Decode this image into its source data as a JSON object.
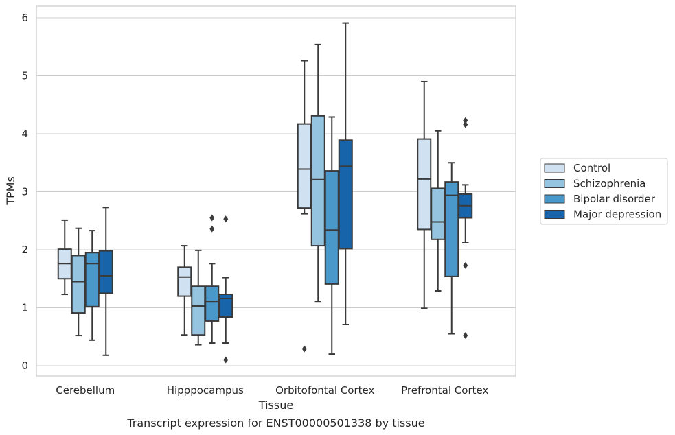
{
  "chart_data": {
    "type": "box",
    "xlabel": "Tissue",
    "ylabel": "TPMs",
    "caption": "Transcript expression for ENST00000501338 by tissue",
    "ylim": [
      -0.18,
      6.2
    ],
    "yticks": [
      0,
      1,
      2,
      3,
      4,
      5,
      6
    ],
    "grid": "horizontal",
    "legend_position": "right",
    "categories": [
      "Cerebellum",
      "Hipppocampus",
      "Orbitofontal Cortex",
      "Prefrontal Cortex"
    ],
    "series": [
      {
        "name": "Control",
        "color": "#d0e1f2",
        "boxes": [
          {
            "whislo": 1.23,
            "q1": 1.5,
            "med": 1.76,
            "q3": 2.01,
            "whishi": 2.51,
            "fliers": []
          },
          {
            "whislo": 0.53,
            "q1": 1.2,
            "med": 1.53,
            "q3": 1.7,
            "whishi": 2.07,
            "fliers": []
          },
          {
            "whislo": 2.62,
            "q1": 2.72,
            "med": 3.39,
            "q3": 4.17,
            "whishi": 5.26,
            "fliers": [
              0.29
            ]
          },
          {
            "whislo": 0.99,
            "q1": 2.35,
            "med": 3.22,
            "q3": 3.91,
            "whishi": 4.9,
            "fliers": []
          }
        ]
      },
      {
        "name": "Schizophrenia",
        "color": "#94c4df",
        "boxes": [
          {
            "whislo": 0.52,
            "q1": 0.91,
            "med": 1.45,
            "q3": 1.9,
            "whishi": 2.37,
            "fliers": []
          },
          {
            "whislo": 0.36,
            "q1": 0.53,
            "med": 1.03,
            "q3": 1.37,
            "whishi": 1.99,
            "fliers": []
          },
          {
            "whislo": 1.11,
            "q1": 2.07,
            "med": 3.21,
            "q3": 4.31,
            "whishi": 5.54,
            "fliers": []
          },
          {
            "whislo": 1.29,
            "q1": 2.18,
            "med": 2.48,
            "q3": 3.06,
            "whishi": 4.05,
            "fliers": []
          }
        ]
      },
      {
        "name": "Bipolar disorder",
        "color": "#4a98c9",
        "boxes": [
          {
            "whislo": 0.44,
            "q1": 1.02,
            "med": 1.76,
            "q3": 1.95,
            "whishi": 2.33,
            "fliers": []
          },
          {
            "whislo": 0.39,
            "q1": 0.77,
            "med": 1.11,
            "q3": 1.37,
            "whishi": 1.76,
            "fliers": [
              2.36,
              2.55
            ]
          },
          {
            "whislo": 0.2,
            "q1": 1.41,
            "med": 2.34,
            "q3": 3.36,
            "whishi": 4.29,
            "fliers": []
          },
          {
            "whislo": 0.55,
            "q1": 1.54,
            "med": 2.94,
            "q3": 3.17,
            "whishi": 3.5,
            "fliers": []
          }
        ]
      },
      {
        "name": "Major depression",
        "color": "#1764ab",
        "boxes": [
          {
            "whislo": 0.18,
            "q1": 1.25,
            "med": 1.55,
            "q3": 1.98,
            "whishi": 2.73,
            "fliers": []
          },
          {
            "whislo": 0.39,
            "q1": 0.84,
            "med": 1.16,
            "q3": 1.23,
            "whishi": 1.52,
            "fliers": [
              0.1,
              2.53
            ]
          },
          {
            "whislo": 0.71,
            "q1": 2.02,
            "med": 3.44,
            "q3": 3.89,
            "whishi": 5.91,
            "fliers": []
          },
          {
            "whislo": 2.13,
            "q1": 2.55,
            "med": 2.76,
            "q3": 2.96,
            "whishi": 3.12,
            "fliers": [
              0.52,
              1.73,
              4.16,
              4.23
            ]
          }
        ]
      }
    ]
  }
}
